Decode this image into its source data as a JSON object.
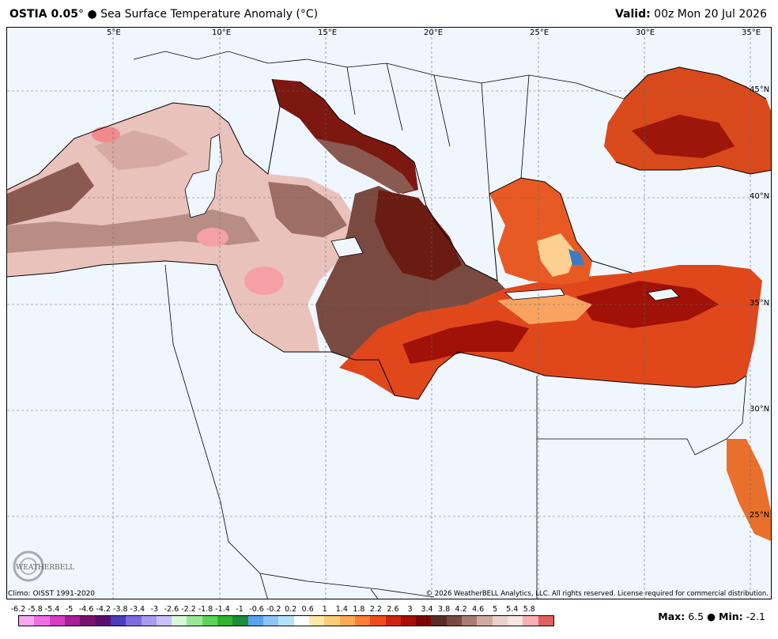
{
  "header": {
    "product": "OSTIA 0.05",
    "degree_symbol": "°",
    "bullet": "●",
    "variable": "Sea Surface Temperature Anomaly (°C)",
    "valid_label": "Valid:",
    "valid_time": "00z Mon 20 Jul 2026"
  },
  "map": {
    "longitude_labels": [
      "5°E",
      "10°E",
      "15°E",
      "20°E",
      "25°E",
      "30°E",
      "35°E"
    ],
    "latitude_labels": [
      "45°N",
      "40°N",
      "35°N",
      "30°N",
      "25°N"
    ],
    "region": "Mediterranean Sea",
    "logo_text": "WEATHERBELL",
    "colors": {
      "ocean_background": "#f0f6fd",
      "western_med_anomaly": "#f2c9c4",
      "central_med_anomaly": "#7a4a40",
      "eastern_med_anomaly": "#c0301a",
      "black_sea_anomaly": "#d84a1c"
    }
  },
  "footer": {
    "climo": "Climo: OISST 1991-2020",
    "copyright": "© 2026 WeatherBELL Analytics, LLC. All rights reserved. License required for commercial distribution.",
    "max_label": "Max:",
    "max_value": "6.5",
    "separator": "●",
    "min_label": "Min:",
    "min_value": "-2.1"
  },
  "legend": {
    "labels": [
      "-6.2",
      "-5.8",
      "-5.4",
      "-5",
      "-4.6",
      "-4.2",
      "-3.8",
      "-3.4",
      "-3",
      "-2.6",
      "-2.2",
      "-1.8",
      "-1.4",
      "-1",
      "-0.6",
      "-0.2",
      "0.2",
      "0.6",
      "1",
      "1.4",
      "1.8",
      "2.2",
      "2.6",
      "3",
      "3.4",
      "3.8",
      "4.2",
      "4.6",
      "5",
      "5.4",
      "5.8"
    ],
    "colors": [
      "#f7a8f0",
      "#ee6ee6",
      "#d63cc6",
      "#a81e94",
      "#7a1270",
      "#5a0e6e",
      "#4b3bbf",
      "#7c6ce0",
      "#a89af0",
      "#cac0f8",
      "#d8f8d8",
      "#98e898",
      "#5ad45a",
      "#2eb42e",
      "#1a8c3c",
      "#5aa0f0",
      "#8cc4f8",
      "#b4e2fa",
      "#ffffff",
      "#ffe8a8",
      "#ffcc7a",
      "#ffa856",
      "#ff7e38",
      "#f04c1e",
      "#d02412",
      "#a80e0a",
      "#7c0606",
      "#5a2e28",
      "#7a4a40",
      "#a87c70",
      "#d0aaa0",
      "#ecd0ca",
      "#f8e4e0",
      "#f8b0b0",
      "#e06060"
    ]
  }
}
